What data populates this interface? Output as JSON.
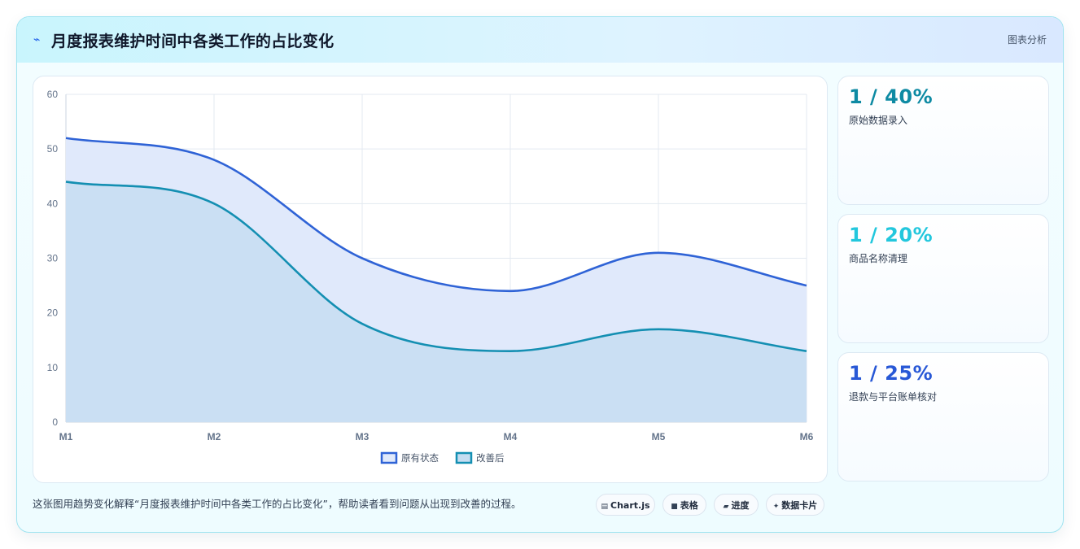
{
  "header": {
    "icon": "lightning-icon",
    "title": "月度报表维护时间中各类工作的占比变化",
    "tag": "图表分析"
  },
  "chart_data": {
    "type": "area",
    "x": [
      "M1",
      "M2",
      "M3",
      "M4",
      "M5",
      "M6"
    ],
    "series": [
      {
        "name": "原有状态",
        "values": [
          52,
          48,
          30,
          24,
          31,
          25
        ],
        "color": "#2f63d6",
        "fill": "#e0e9fb"
      },
      {
        "name": "改善后",
        "values": [
          44,
          40,
          18,
          13,
          17,
          13
        ],
        "color": "#148fb2",
        "fill": "#c5ddf1"
      }
    ],
    "ylim": [
      0,
      60
    ],
    "yticks": [
      0,
      10,
      20,
      30,
      40,
      50,
      60
    ],
    "grid": true,
    "legend": "bottom"
  },
  "stats": [
    {
      "value": "1 / 40%",
      "label": "原始数据录入",
      "color": "#0e8aa3"
    },
    {
      "value": "1 / 20%",
      "label": "商品名称清理",
      "color": "#22c7dd"
    },
    {
      "value": "1 / 25%",
      "label": "退款与平台账单核对",
      "color": "#2858d6"
    }
  ],
  "footer": {
    "caption": "这张图用趋势变化解释“月度报表维护时间中各类工作的占比变化”，帮助读者看到问题从出现到改善的过程。",
    "chips": [
      {
        "icon": "chart-icon",
        "glyph": "▤",
        "label": "Chart.js"
      },
      {
        "icon": "table-icon",
        "glyph": "■",
        "label": "表格"
      },
      {
        "icon": "progress-icon",
        "glyph": "▰",
        "label": "进度"
      },
      {
        "icon": "sparkle-icon",
        "glyph": "✦",
        "label": "数据卡片"
      }
    ]
  }
}
